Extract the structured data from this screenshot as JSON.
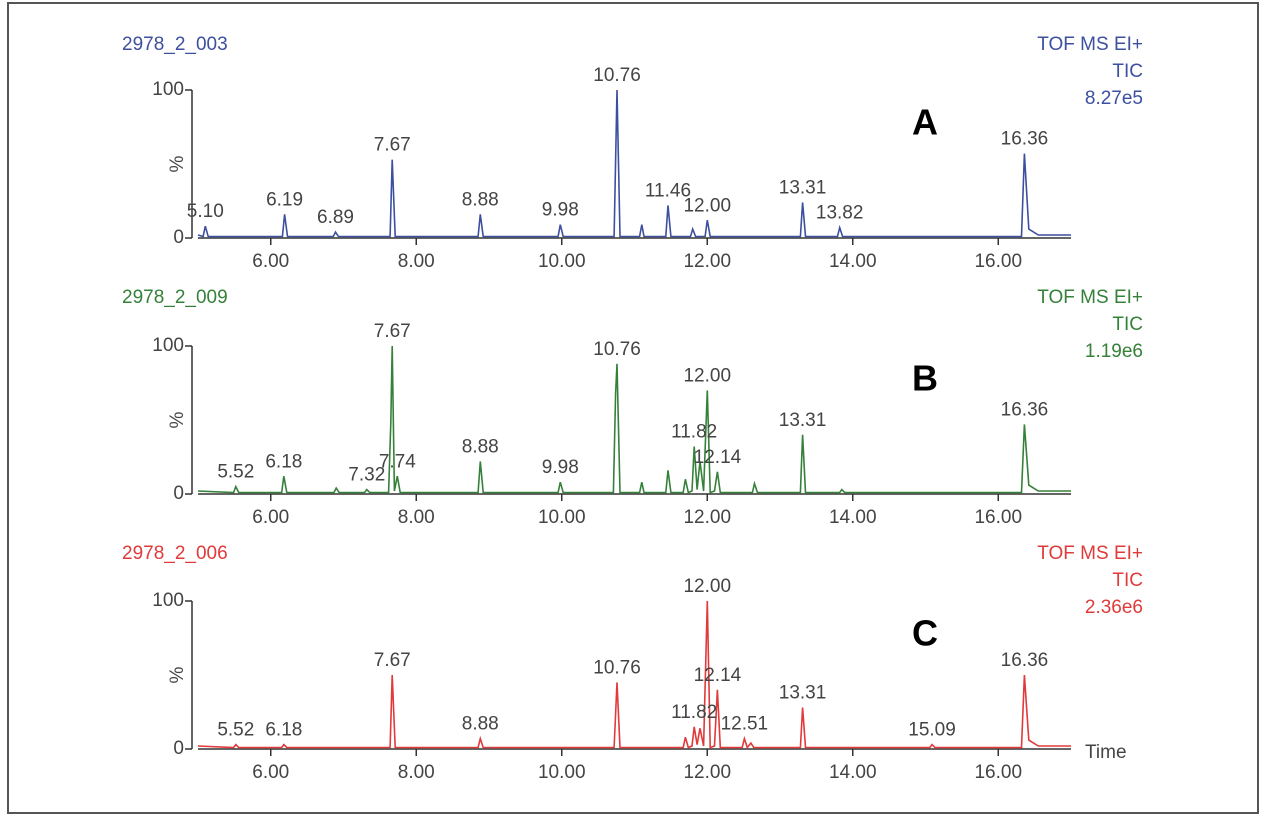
{
  "chart_data": [
    {
      "type": "line",
      "title": "2978_2_003",
      "header": [
        "TOF MS EI+",
        "TIC",
        "8.27e5"
      ],
      "panel_label": "A",
      "ylabel": "%",
      "color": "#3d4f9f",
      "xlim": [
        5,
        17
      ],
      "ylim": [
        0,
        100
      ],
      "yticks": [
        0,
        100
      ],
      "xticks": [
        {
          "value": 6,
          "label": "6.00"
        },
        {
          "value": 8,
          "label": "8.00"
        },
        {
          "value": 10,
          "label": "10.00"
        },
        {
          "value": 12,
          "label": "12.00"
        },
        {
          "value": 14,
          "label": "14.00"
        },
        {
          "value": 16,
          "label": "16.00"
        }
      ],
      "x": [
        5.0,
        5.07,
        5.1,
        5.14,
        6.16,
        6.19,
        6.23,
        6.86,
        6.89,
        6.93,
        7.64,
        7.67,
        7.71,
        8.85,
        8.88,
        8.92,
        9.95,
        9.98,
        10.02,
        10.72,
        10.76,
        10.8,
        11.07,
        11.1,
        11.13,
        11.43,
        11.46,
        11.5,
        11.77,
        11.8,
        11.84,
        11.97,
        12.0,
        12.04,
        13.28,
        13.31,
        13.35,
        13.79,
        13.82,
        13.86,
        16.32,
        16.36,
        16.42,
        16.55,
        17.0
      ],
      "values": [
        2,
        1,
        8,
        1,
        1,
        16,
        1,
        1,
        4,
        1,
        1,
        53,
        1,
        1,
        16,
        1,
        1,
        9,
        1,
        1,
        100,
        1,
        1,
        9,
        1,
        1,
        22,
        1,
        1,
        6,
        1,
        1,
        12,
        1,
        1,
        24,
        1,
        1,
        7,
        1,
        1,
        57,
        6,
        2,
        2
      ],
      "annotations": [
        {
          "x": 5.1,
          "label": "5.10"
        },
        {
          "x": 6.19,
          "label": "6.19"
        },
        {
          "x": 6.89,
          "label": "6.89"
        },
        {
          "x": 7.67,
          "label": "7.67"
        },
        {
          "x": 8.88,
          "label": "8.88"
        },
        {
          "x": 9.98,
          "label": "9.98"
        },
        {
          "x": 10.76,
          "label": "10.76"
        },
        {
          "x": 11.46,
          "label": "11.46"
        },
        {
          "x": 12.0,
          "label": "12.00"
        },
        {
          "x": 13.31,
          "label": "13.31"
        },
        {
          "x": 13.82,
          "label": "13.82"
        },
        {
          "x": 16.36,
          "label": "16.36"
        }
      ]
    },
    {
      "type": "line",
      "title": "2978_2_009",
      "header": [
        "TOF MS EI+",
        "TIC",
        "1.19e6"
      ],
      "panel_label": "B",
      "ylabel": "%",
      "color": "#35813a",
      "xlim": [
        5,
        17
      ],
      "ylim": [
        0,
        100
      ],
      "yticks": [
        0,
        100
      ],
      "xticks": [
        {
          "value": 6,
          "label": "6.00"
        },
        {
          "value": 8,
          "label": "8.00"
        },
        {
          "value": 10,
          "label": "10.00"
        },
        {
          "value": 12,
          "label": "12.00"
        },
        {
          "value": 14,
          "label": "14.00"
        },
        {
          "value": 16,
          "label": "16.00"
        }
      ],
      "x": [
        5.0,
        5.49,
        5.52,
        5.56,
        6.15,
        6.18,
        6.22,
        6.87,
        6.9,
        6.94,
        7.29,
        7.32,
        7.36,
        7.62,
        7.65,
        7.67,
        7.7,
        7.74,
        7.78,
        8.85,
        8.88,
        8.92,
        9.95,
        9.98,
        10.02,
        10.71,
        10.74,
        10.76,
        10.8,
        11.07,
        11.1,
        11.13,
        11.43,
        11.46,
        11.5,
        11.67,
        11.7,
        11.74,
        11.79,
        11.82,
        11.86,
        11.9,
        11.95,
        12.0,
        12.04,
        12.1,
        12.14,
        12.18,
        12.62,
        12.65,
        12.69,
        13.28,
        13.31,
        13.35,
        13.82,
        13.85,
        13.89,
        16.32,
        16.36,
        16.42,
        16.55,
        17.0
      ],
      "values": [
        2,
        1,
        5,
        1,
        1,
        12,
        1,
        1,
        4,
        1,
        1,
        3,
        1,
        1,
        48,
        100,
        2,
        12,
        1,
        1,
        22,
        1,
        1,
        8,
        1,
        1,
        68,
        88,
        1,
        1,
        8,
        1,
        1,
        16,
        1,
        1,
        10,
        1,
        2,
        32,
        3,
        22,
        2,
        70,
        1,
        2,
        15,
        1,
        1,
        7,
        1,
        1,
        40,
        1,
        1,
        3,
        1,
        1,
        47,
        6,
        2,
        2
      ],
      "annotations": [
        {
          "x": 5.52,
          "label": "5.52"
        },
        {
          "x": 6.18,
          "label": "6.18"
        },
        {
          "x": 7.32,
          "label": "7.32"
        },
        {
          "x": 7.67,
          "label": "7.67"
        },
        {
          "x": 7.74,
          "label": "7.74"
        },
        {
          "x": 8.88,
          "label": "8.88"
        },
        {
          "x": 9.98,
          "label": "9.98"
        },
        {
          "x": 10.76,
          "label": "10.76"
        },
        {
          "x": 11.82,
          "label": "11.82"
        },
        {
          "x": 12.0,
          "label": "12.00"
        },
        {
          "x": 12.14,
          "label": "12.14"
        },
        {
          "x": 13.31,
          "label": "13.31"
        },
        {
          "x": 16.36,
          "label": "16.36"
        }
      ]
    },
    {
      "type": "line",
      "title": "2978_2_006",
      "header": [
        "TOF MS EI+",
        "TIC",
        "2.36e6"
      ],
      "panel_label": "C",
      "ylabel": "%",
      "xlabel": "Time",
      "color": "#e03a3a",
      "xlim": [
        5,
        17
      ],
      "ylim": [
        0,
        100
      ],
      "yticks": [
        0,
        100
      ],
      "xticks": [
        {
          "value": 6,
          "label": "6.00"
        },
        {
          "value": 8,
          "label": "8.00"
        },
        {
          "value": 10,
          "label": "10.00"
        },
        {
          "value": 12,
          "label": "12.00"
        },
        {
          "value": 14,
          "label": "14.00"
        },
        {
          "value": 16,
          "label": "16.00"
        }
      ],
      "x": [
        5.0,
        5.49,
        5.52,
        5.56,
        6.15,
        6.18,
        6.22,
        7.64,
        7.67,
        7.71,
        8.85,
        8.88,
        8.92,
        10.72,
        10.76,
        10.8,
        11.67,
        11.7,
        11.74,
        11.79,
        11.82,
        11.86,
        11.9,
        11.95,
        12.0,
        12.04,
        12.1,
        12.14,
        12.18,
        12.48,
        12.51,
        12.55,
        12.6,
        12.64,
        13.28,
        13.31,
        13.35,
        15.06,
        15.09,
        15.13,
        16.32,
        16.36,
        16.42,
        16.55,
        17.0
      ],
      "values": [
        2,
        1,
        3,
        1,
        1,
        3,
        1,
        1,
        50,
        1,
        1,
        7,
        1,
        1,
        45,
        1,
        1,
        8,
        1,
        2,
        15,
        3,
        14,
        2,
        100,
        1,
        2,
        40,
        1,
        1,
        7,
        1,
        4,
        1,
        1,
        28,
        1,
        1,
        3,
        1,
        1,
        50,
        6,
        2,
        2
      ],
      "annotations": [
        {
          "x": 5.52,
          "label": "5.52"
        },
        {
          "x": 6.18,
          "label": "6.18"
        },
        {
          "x": 7.67,
          "label": "7.67"
        },
        {
          "x": 8.88,
          "label": "8.88"
        },
        {
          "x": 10.76,
          "label": "10.76"
        },
        {
          "x": 11.82,
          "label": "11.82"
        },
        {
          "x": 12.0,
          "label": "12.00"
        },
        {
          "x": 12.14,
          "label": "12.14"
        },
        {
          "x": 12.51,
          "label": "12.51"
        },
        {
          "x": 13.31,
          "label": "13.31"
        },
        {
          "x": 15.09,
          "label": "15.09"
        },
        {
          "x": 16.36,
          "label": "16.36"
        }
      ]
    }
  ]
}
